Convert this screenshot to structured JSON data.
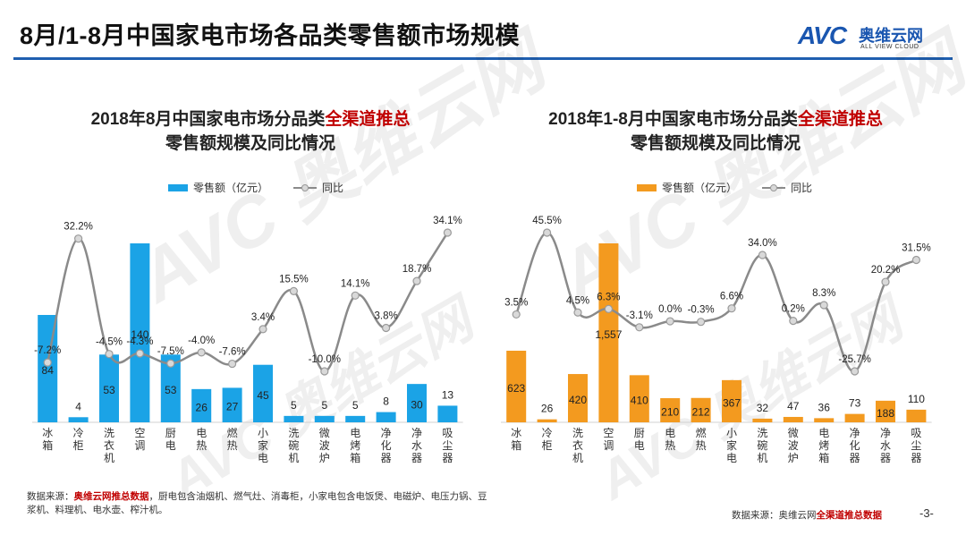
{
  "header": {
    "title": "8月/1-8月中国家电市场各品类零售额市场规模"
  },
  "logo": {
    "mark": "AVC",
    "name_cn": "奥维云网",
    "name_en": "ALL VIEW CLOUD"
  },
  "watermark": {
    "mark": "AVC",
    "name_cn": "奥维云网",
    "name_en": "ALL VIEW CLOUD"
  },
  "chart_data": [
    {
      "type": "bar+line",
      "title_prefix": "2018年8月中国家电市场分品类",
      "title_highlight": "全渠道推总",
      "title_line2": "零售额规模及同比情况",
      "legend_bar": "零售额（亿元）",
      "legend_line": "同比",
      "bar_color": "#1ba3e6",
      "line_color": "#8a8a8a",
      "categories": [
        "冰箱",
        "冷柜",
        "洗衣机",
        "空调",
        "厨电",
        "电热",
        "燃热",
        "小家电",
        "洗碗机",
        "微波炉",
        "电烤箱",
        "净化器",
        "净水器",
        "吸尘器"
      ],
      "values": [
        84,
        4,
        53,
        140,
        53,
        26,
        27,
        45,
        5,
        5,
        5,
        8,
        30,
        13
      ],
      "value_labels": [
        "84",
        "4",
        "53",
        "140",
        "53",
        "26",
        "27",
        "45",
        "5",
        "5",
        "5",
        "8",
        "30",
        "13"
      ],
      "yoy": [
        -7.2,
        32.2,
        -4.5,
        -4.3,
        -7.5,
        -4.0,
        -7.6,
        3.4,
        15.5,
        -10.0,
        14.1,
        3.8,
        18.7,
        34.1
      ],
      "yoy_labels": [
        "-7.2%",
        "32.2%",
        "-4.5%",
        "-4.3%",
        "-7.5%",
        "-4.0%",
        "-7.6%",
        "3.4%",
        "15.5%",
        "-10.0%",
        "14.1%",
        "3.8%",
        "18.7%",
        "34.1%"
      ]
    },
    {
      "type": "bar+line",
      "title_prefix": "2018年1-8月中国家电市场分品类",
      "title_highlight": "全渠道推总",
      "title_line2": "零售额规模及同比情况",
      "legend_bar": "零售额（亿元）",
      "legend_line": "同比",
      "bar_color": "#f39a1f",
      "line_color": "#8a8a8a",
      "categories": [
        "冰箱",
        "冷柜",
        "洗衣机",
        "空调",
        "厨电",
        "电热",
        "燃热",
        "小家电",
        "洗碗机",
        "微波炉",
        "电烤箱",
        "净化器",
        "净水器",
        "吸尘器"
      ],
      "values": [
        623,
        26,
        420,
        1557,
        410,
        210,
        212,
        367,
        32,
        47,
        36,
        73,
        188,
        110
      ],
      "value_labels": [
        "623",
        "26",
        "420",
        "1,557",
        "410",
        "210",
        "212",
        "367",
        "32",
        "47",
        "36",
        "73",
        "188",
        "110"
      ],
      "yoy": [
        3.5,
        45.5,
        4.5,
        6.3,
        -3.1,
        0.0,
        -0.3,
        6.6,
        34.0,
        0.2,
        8.3,
        -25.7,
        20.2,
        31.5
      ],
      "yoy_labels": [
        "3.5%",
        "45.5%",
        "4.5%",
        "6.3%",
        "-3.1%",
        "0.0%",
        "-0.3%",
        "6.6%",
        "34.0%",
        "0.2%",
        "8.3%",
        "-25.7%",
        "20.2%",
        "31.5%"
      ]
    }
  ],
  "footnote_left": {
    "label": "数据来源：",
    "source": "奥维云网推总数据",
    "note": "，厨电包含油烟机、燃气灶、消毒柜，小家电包含电饭煲、电磁炉、电压力锅、豆浆机、料理机、电水壶、榨汁机。"
  },
  "footnote_right": {
    "label": "数据来源：奥维云网",
    "source": "全渠道推总数据"
  },
  "page_number": "-3-"
}
